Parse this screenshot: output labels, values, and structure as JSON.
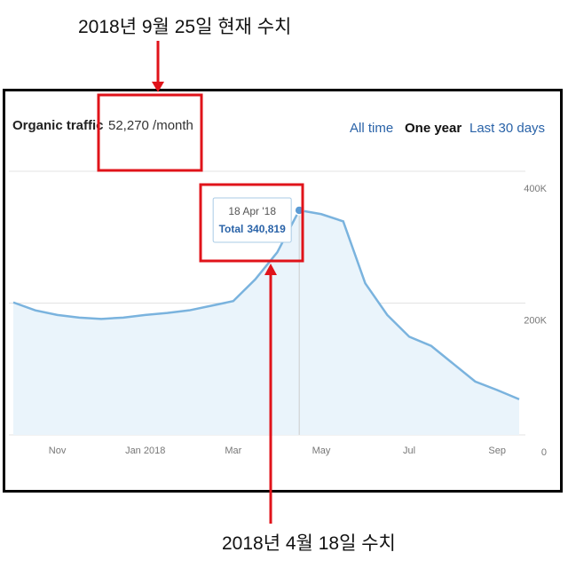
{
  "header": {
    "title": "Organic traffic",
    "value": "52,270 /month",
    "tabs": [
      "All time",
      "One year",
      "Last 30 days"
    ]
  },
  "annotations": {
    "top": "2018년 9월 25일 현재 수치",
    "bottom": "2018년 4월 18일 수치"
  },
  "chart_data": {
    "type": "area",
    "categories": [
      null,
      null,
      "Nov",
      null,
      null,
      null,
      "Jan 2018",
      null,
      null,
      null,
      "Mar",
      null,
      null,
      null,
      "May",
      null,
      null,
      null,
      "Jul",
      null,
      null,
      null,
      "Sep",
      null
    ],
    "values": [
      201000,
      189000,
      182000,
      178000,
      176000,
      178000,
      182000,
      185000,
      189000,
      196000,
      203000,
      236000,
      277000,
      340819,
      335000,
      324000,
      230000,
      182000,
      149000,
      135000,
      108000,
      81000,
      68000,
      54000
    ],
    "color": "#7ab3de",
    "ylim": [
      0,
      400000
    ],
    "yticks": [
      {
        "value": 0,
        "label": "0"
      },
      {
        "value": 200000,
        "label": "200K"
      },
      {
        "value": 400000,
        "label": "400K"
      }
    ],
    "grid": true,
    "tooltip": {
      "date": "18 Apr '18",
      "label": "Total",
      "value": 340819,
      "value_label": "340,819"
    }
  }
}
